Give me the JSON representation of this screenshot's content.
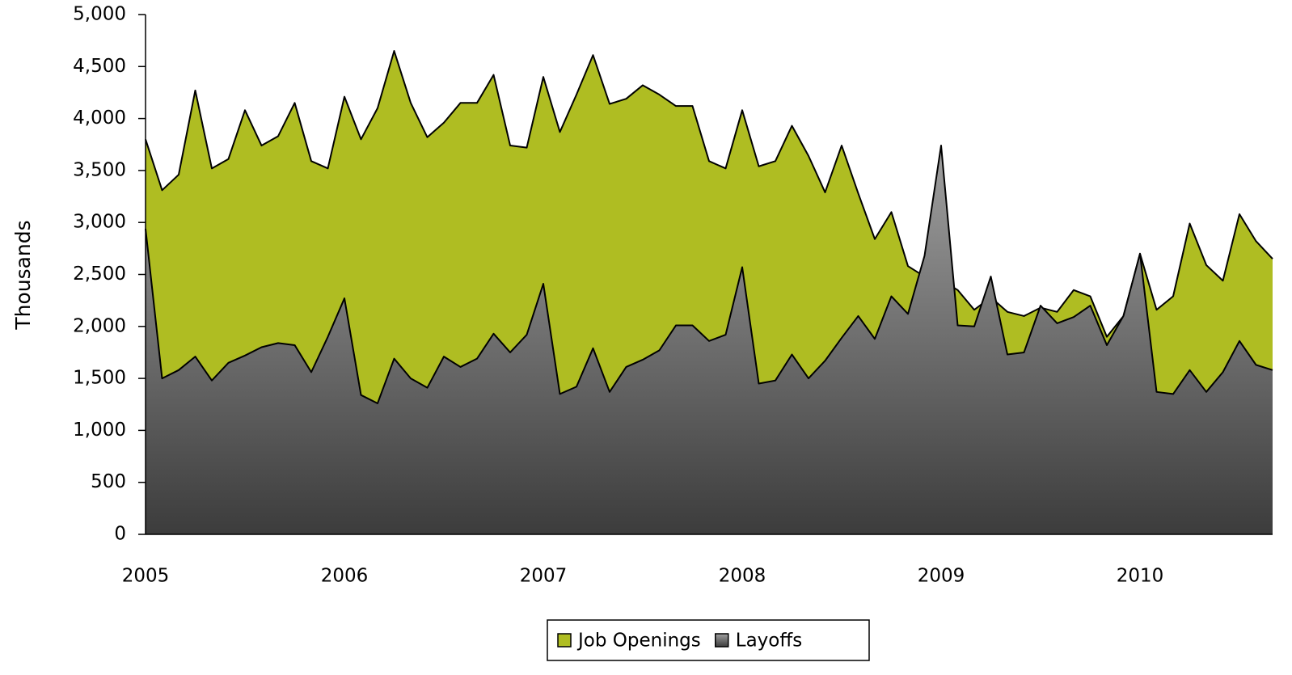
{
  "chart_data": {
    "type": "area",
    "y_label": "Thousands",
    "categories": [
      "2005",
      null,
      null,
      null,
      null,
      null,
      null,
      null,
      null,
      null,
      null,
      null,
      "2006",
      null,
      null,
      null,
      null,
      null,
      null,
      null,
      null,
      null,
      null,
      null,
      "2007",
      null,
      null,
      null,
      null,
      null,
      null,
      null,
      null,
      null,
      null,
      null,
      "2008",
      null,
      null,
      null,
      null,
      null,
      null,
      null,
      null,
      null,
      null,
      null,
      "2009",
      null,
      null,
      null,
      null,
      null,
      null,
      null,
      null,
      null,
      null,
      null,
      "2010",
      null,
      null,
      null,
      null,
      null,
      null,
      null,
      null
    ],
    "series": [
      {
        "name": "Job Openings",
        "color": "#afbd22",
        "values": [
          3800,
          3310,
          3460,
          4270,
          3520,
          3610,
          4080,
          3740,
          3830,
          4150,
          3590,
          3520,
          4210,
          3800,
          4100,
          4650,
          4150,
          3820,
          3960,
          4150,
          4150,
          4420,
          3740,
          3720,
          4400,
          3870,
          4230,
          4610,
          4140,
          4190,
          4320,
          4230,
          4120,
          4120,
          3590,
          3520,
          4080,
          3540,
          3590,
          3930,
          3640,
          3290,
          3740,
          3280,
          2840,
          3100,
          2580,
          2480,
          2450,
          2350,
          2160,
          2280,
          2140,
          2100,
          2180,
          2140,
          2350,
          2290,
          1900,
          2100,
          2700,
          2160,
          2290,
          2990,
          2590,
          2440,
          3080,
          2820,
          2650
        ]
      },
      {
        "name": "Layoffs",
        "color": "#808080",
        "values": [
          2940,
          1500,
          1580,
          1710,
          1480,
          1650,
          1720,
          1800,
          1840,
          1820,
          1560,
          1900,
          2270,
          1340,
          1260,
          1690,
          1500,
          1410,
          1710,
          1610,
          1690,
          1930,
          1750,
          1920,
          2410,
          1350,
          1420,
          1790,
          1370,
          1610,
          1680,
          1770,
          2010,
          2010,
          1860,
          1920,
          2570,
          1450,
          1480,
          1730,
          1500,
          1670,
          1890,
          2100,
          1880,
          2290,
          2120,
          2680,
          3740,
          2010,
          2000,
          2480,
          1730,
          1750,
          2200,
          2030,
          2090,
          2200,
          1820,
          2100,
          2700,
          1370,
          1350,
          1580,
          1370,
          1560,
          1860,
          1630,
          1580
        ]
      }
    ],
    "ylim": [
      0,
      5000
    ],
    "yticks": [
      0,
      500,
      {
        "value": 1000,
        "label": "1,000"
      },
      {
        "value": 1500,
        "label": "1,500"
      },
      {
        "value": 2000,
        "label": "2,000"
      },
      {
        "value": 2500,
        "label": "2,500"
      },
      {
        "value": 3000,
        "label": "3,000"
      },
      {
        "value": 3500,
        "label": "3,500"
      },
      {
        "value": 4000,
        "label": "4,000"
      },
      {
        "value": 4500,
        "label": "4,500"
      },
      {
        "value": 5000,
        "label": "5,000"
      }
    ],
    "legend": "bottom"
  }
}
